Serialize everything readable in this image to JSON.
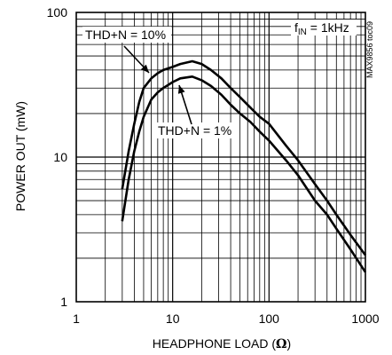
{
  "chart_data": {
    "type": "line",
    "x_scale": "log",
    "y_scale": "log",
    "xlim": [
      1,
      1000
    ],
    "ylim": [
      1,
      100
    ],
    "xlabel_prefix": "HEADPHONE LOAD (",
    "xlabel_unit": "Ω",
    "xlabel_suffix": ")",
    "ylabel": "POWER OUT (mW)",
    "x_ticks": [
      {
        "value": 1,
        "label": "1"
      },
      {
        "value": 10,
        "label": "10"
      },
      {
        "value": 100,
        "label": "100"
      },
      {
        "value": 1000,
        "label": "1000"
      }
    ],
    "y_ticks": [
      {
        "value": 1,
        "label": "1"
      },
      {
        "value": 10,
        "label": "10"
      },
      {
        "value": 100,
        "label": "100"
      }
    ],
    "grid": true,
    "condition": {
      "f": "f",
      "sub": "IN",
      "eq": " = 1kHz"
    },
    "part_code": "MAX9856 toc09",
    "series": [
      {
        "name": "THD+N = 10%",
        "points": [
          [
            3,
            6
          ],
          [
            3.5,
            11
          ],
          [
            4,
            17
          ],
          [
            4.5,
            24
          ],
          [
            5,
            30
          ],
          [
            6,
            35
          ],
          [
            7,
            38
          ],
          [
            8,
            40
          ],
          [
            10,
            42
          ],
          [
            12,
            44
          ],
          [
            16,
            46
          ],
          [
            20,
            44
          ],
          [
            25,
            40
          ],
          [
            32,
            35
          ],
          [
            40,
            30
          ],
          [
            50,
            26
          ],
          [
            64,
            22
          ],
          [
            80,
            19
          ],
          [
            100,
            17
          ],
          [
            150,
            12
          ],
          [
            200,
            9.5
          ],
          [
            300,
            6.5
          ],
          [
            400,
            5
          ],
          [
            500,
            4
          ],
          [
            700,
            2.9
          ],
          [
            1000,
            2.1
          ]
        ]
      },
      {
        "name": "THD+N = 1%",
        "points": [
          [
            3,
            3.6
          ],
          [
            3.5,
            7
          ],
          [
            4,
            11
          ],
          [
            4.5,
            15
          ],
          [
            5,
            19
          ],
          [
            6,
            25
          ],
          [
            7,
            28
          ],
          [
            8,
            30
          ],
          [
            10,
            33
          ],
          [
            12,
            35
          ],
          [
            16,
            36
          ],
          [
            20,
            34
          ],
          [
            25,
            31
          ],
          [
            32,
            27
          ],
          [
            40,
            23
          ],
          [
            50,
            20
          ],
          [
            64,
            17.5
          ],
          [
            80,
            15
          ],
          [
            100,
            13
          ],
          [
            150,
            9.5
          ],
          [
            200,
            7.5
          ],
          [
            300,
            5
          ],
          [
            400,
            4
          ],
          [
            500,
            3.2
          ],
          [
            700,
            2.3
          ],
          [
            1000,
            1.6
          ]
        ]
      }
    ]
  }
}
